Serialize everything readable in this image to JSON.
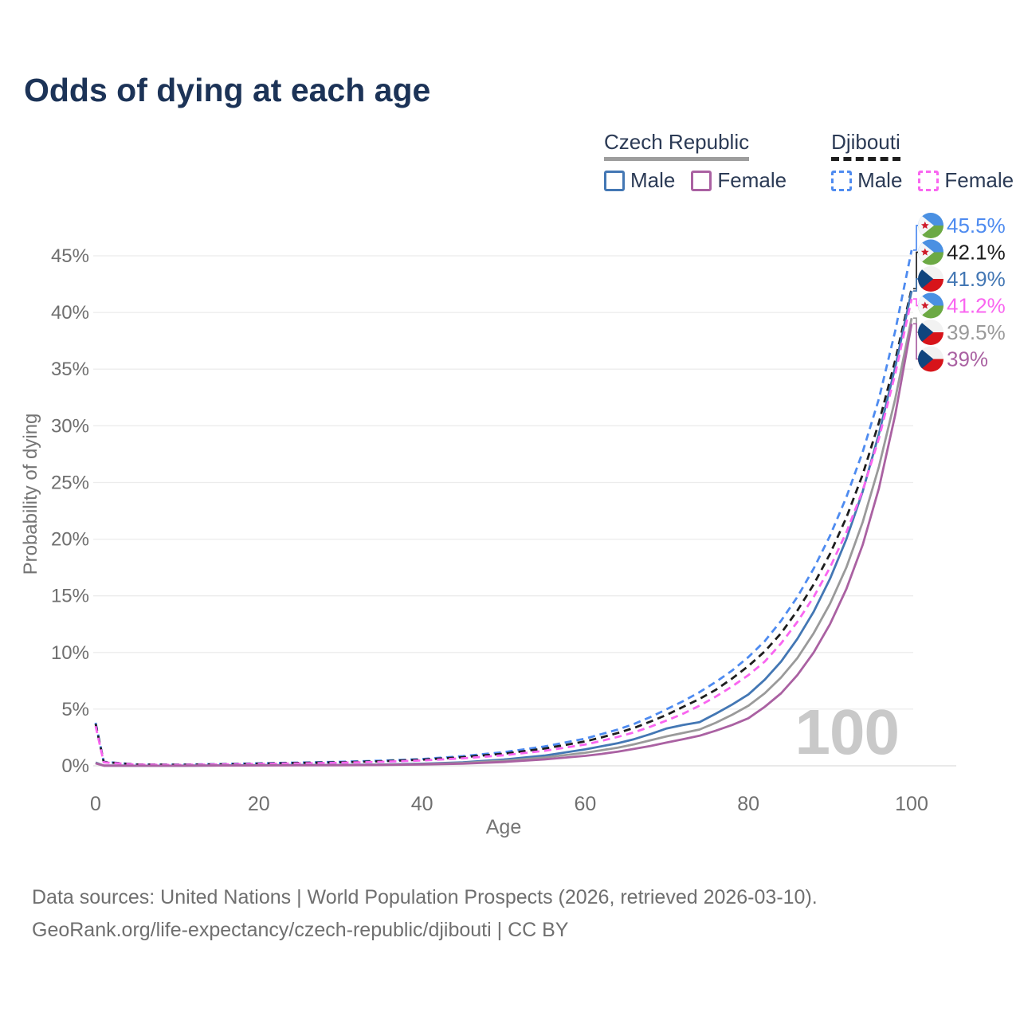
{
  "title": "Odds of dying at each age",
  "age_watermark": "100",
  "legend": {
    "groups": [
      {
        "name": "Czech Republic",
        "underline_style": "solid",
        "underline_color": "#9d9d9d",
        "items": [
          {
            "label": "Male",
            "color": "#4377b4",
            "dashed": false
          },
          {
            "label": "Female",
            "color": "#aa61a2",
            "dashed": false
          }
        ]
      },
      {
        "name": "Djibouti",
        "underline_style": "dashed",
        "underline_color": "#1e1e1e",
        "items": [
          {
            "label": "Male",
            "color": "#4e8bf0",
            "dashed": true
          },
          {
            "label": "Female",
            "color": "#f965f0",
            "dashed": true
          }
        ]
      }
    ]
  },
  "chart_data": {
    "type": "line",
    "title": "Odds of dying at each age",
    "xlabel": "Age",
    "ylabel": "Probability of dying",
    "xlim": [
      0,
      100
    ],
    "ylim": [
      0,
      47.5
    ],
    "xticks": [
      0,
      20,
      40,
      60,
      80,
      100
    ],
    "yticks": [
      {
        "value": 0,
        "label": "0%"
      },
      {
        "value": 5,
        "label": "5%"
      },
      {
        "value": 10,
        "label": "10%"
      },
      {
        "value": 15,
        "label": "15%"
      },
      {
        "value": 20,
        "label": "20%"
      },
      {
        "value": 25,
        "label": "25%"
      },
      {
        "value": 30,
        "label": "30%"
      },
      {
        "value": 35,
        "label": "35%"
      },
      {
        "value": 40,
        "label": "40%"
      },
      {
        "value": 45,
        "label": "45%"
      }
    ],
    "grid": "horizontal",
    "ages": [
      0,
      1,
      5,
      10,
      15,
      20,
      25,
      30,
      35,
      40,
      45,
      50,
      55,
      60,
      62,
      64,
      66,
      68,
      70,
      72,
      74,
      76,
      78,
      80,
      82,
      84,
      86,
      88,
      90,
      92,
      94,
      96,
      98,
      100
    ],
    "series": [
      {
        "name": "Djibouti male",
        "country": "Djibouti",
        "sex": "male",
        "color": "#4e8bf0",
        "dashed": true,
        "flag": "dj",
        "end_label": "45.5%",
        "values": [
          3.8,
          0.35,
          0.12,
          0.1,
          0.15,
          0.22,
          0.28,
          0.35,
          0.45,
          0.6,
          0.85,
          1.2,
          1.7,
          2.4,
          2.8,
          3.2,
          3.7,
          4.3,
          5.0,
          5.7,
          6.5,
          7.4,
          8.4,
          9.6,
          11.0,
          12.8,
          14.9,
          17.4,
          20.3,
          23.7,
          27.7,
          32.4,
          38.4,
          45.5
        ]
      },
      {
        "name": "Djibouti both sexes",
        "country": "Djibouti",
        "sex": "both",
        "color": "#1e1e1e",
        "dashed": true,
        "flag": "dj",
        "end_label": "42.1%",
        "values": [
          3.7,
          0.33,
          0.11,
          0.09,
          0.13,
          0.19,
          0.25,
          0.31,
          0.4,
          0.54,
          0.76,
          1.07,
          1.52,
          2.15,
          2.5,
          2.9,
          3.35,
          3.9,
          4.5,
          5.2,
          5.9,
          6.7,
          7.7,
          8.8,
          10.1,
          11.7,
          13.7,
          16.0,
          18.7,
          21.9,
          25.7,
          30.3,
          35.8,
          42.1
        ]
      },
      {
        "name": "Czech Republic male",
        "country": "Czech Republic",
        "sex": "male",
        "color": "#4377b4",
        "dashed": false,
        "flag": "cz",
        "end_label": "41.9%",
        "values": [
          0.28,
          0.02,
          0.01,
          0.01,
          0.03,
          0.06,
          0.07,
          0.08,
          0.11,
          0.18,
          0.3,
          0.55,
          0.9,
          1.45,
          1.72,
          2.0,
          2.35,
          2.8,
          3.3,
          3.6,
          3.85,
          4.6,
          5.4,
          6.3,
          7.6,
          9.2,
          11.2,
          13.6,
          16.5,
          20.0,
          24.2,
          29.3,
          35.2,
          41.9
        ]
      },
      {
        "name": "Djibouti female",
        "country": "Djibouti",
        "sex": "female",
        "color": "#f965f0",
        "dashed": true,
        "flag": "dj",
        "end_label": "41.2%",
        "values": [
          3.5,
          0.3,
          0.1,
          0.08,
          0.11,
          0.16,
          0.21,
          0.27,
          0.35,
          0.47,
          0.66,
          0.93,
          1.32,
          1.88,
          2.2,
          2.55,
          2.95,
          3.45,
          4.0,
          4.6,
          5.3,
          6.1,
          7.0,
          8.0,
          9.2,
          10.8,
          12.7,
          14.9,
          17.5,
          20.6,
          24.3,
          28.9,
          34.6,
          41.2
        ]
      },
      {
        "name": "Czech Republic both sexes",
        "country": "Czech Republic",
        "sex": "both",
        "color": "#9a9a9a",
        "dashed": false,
        "flag": "cz",
        "end_label": "39.5%",
        "values": [
          0.25,
          0.018,
          0.009,
          0.009,
          0.025,
          0.045,
          0.055,
          0.065,
          0.09,
          0.15,
          0.25,
          0.45,
          0.73,
          1.15,
          1.37,
          1.6,
          1.9,
          2.25,
          2.6,
          2.9,
          3.2,
          3.8,
          4.5,
          5.3,
          6.4,
          7.8,
          9.5,
          11.7,
          14.3,
          17.5,
          21.5,
          26.4,
          32.4,
          39.5
        ]
      },
      {
        "name": "Czech Republic female",
        "country": "Czech Republic",
        "sex": "female",
        "color": "#aa61a2",
        "dashed": false,
        "flag": "cz",
        "end_label": "39%",
        "values": [
          0.22,
          0.015,
          0.008,
          0.008,
          0.02,
          0.03,
          0.04,
          0.05,
          0.07,
          0.11,
          0.19,
          0.34,
          0.56,
          0.88,
          1.05,
          1.25,
          1.5,
          1.75,
          2.05,
          2.35,
          2.65,
          3.1,
          3.6,
          4.2,
          5.2,
          6.4,
          8.0,
          10.0,
          12.5,
          15.6,
          19.5,
          24.5,
          31.0,
          39.0
        ]
      }
    ]
  },
  "footer": {
    "line1": "Data sources: United Nations | World Population Prospects (2026, retrieved 2026-03-10).",
    "line2": "GeoRank.org/life-expectancy/czech-republic/djibouti | CC BY"
  }
}
